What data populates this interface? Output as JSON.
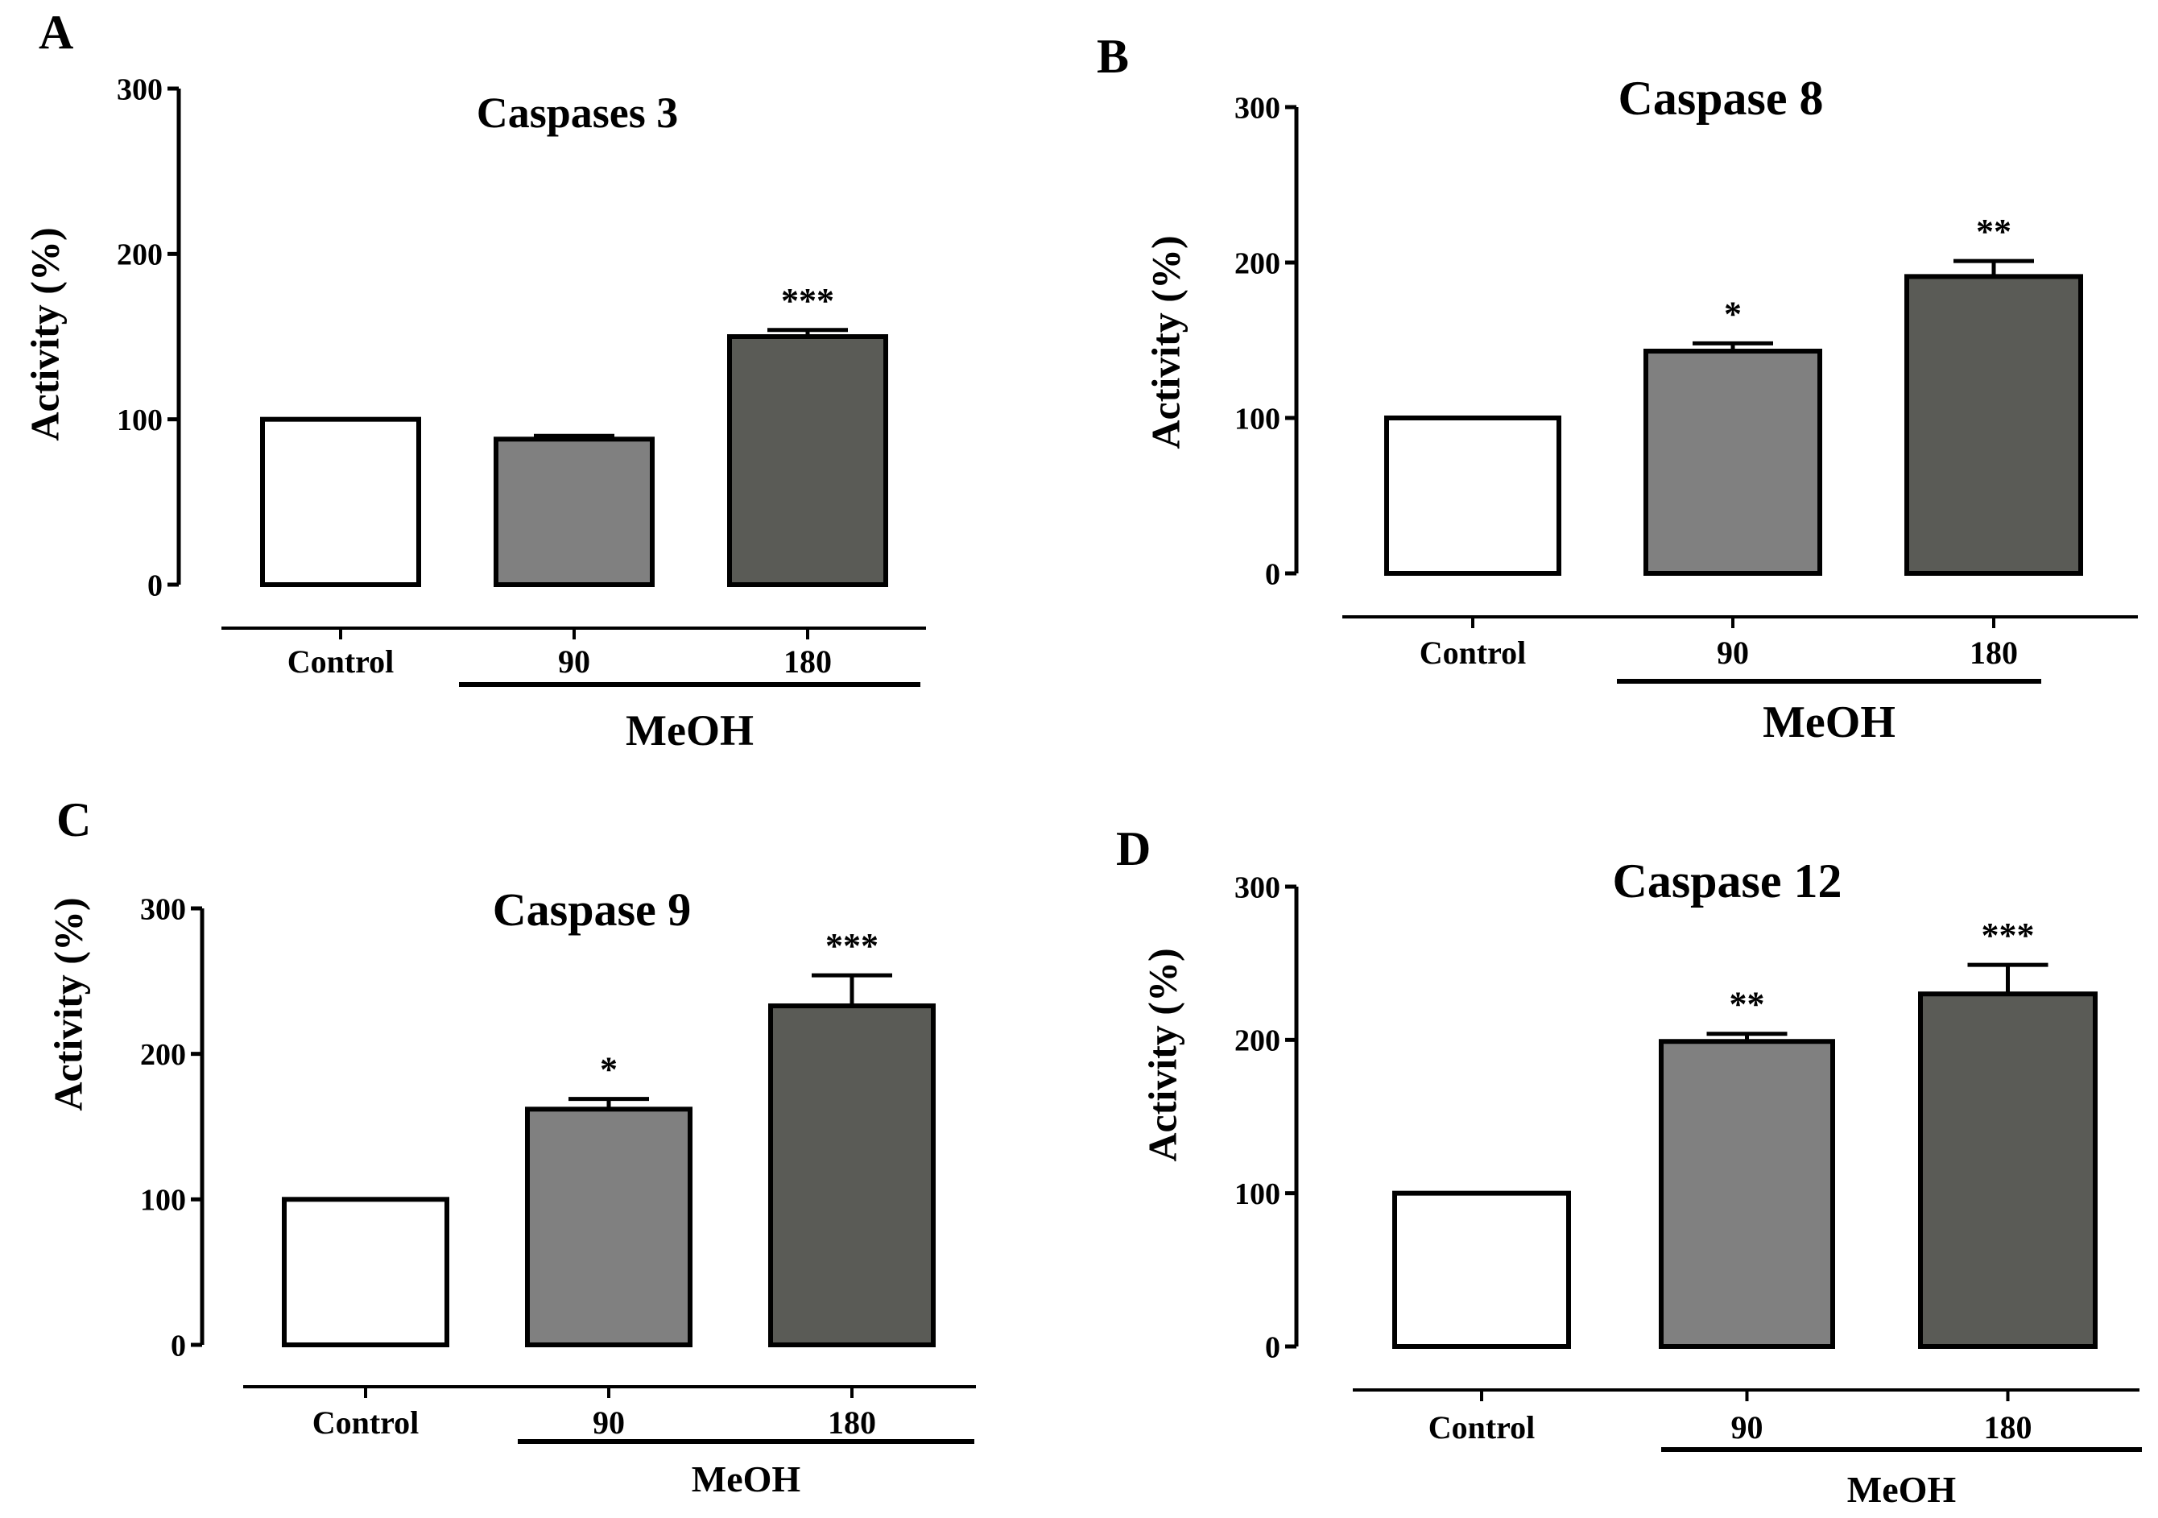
{
  "figure": {
    "bar_colors": {
      "Control": "#ffffff",
      "90": "#808080",
      "180": "#5a5b56"
    },
    "stroke_color": "#000000"
  },
  "chart_data": [
    {
      "panel": "A",
      "type": "bar",
      "title": "Caspases 3",
      "ylabel": "Activity (%)",
      "xlabel": "",
      "group_label": "MeOH",
      "categories": [
        "Control",
        "90",
        "180"
      ],
      "values": [
        100,
        88,
        150
      ],
      "errors": [
        0,
        2,
        4
      ],
      "significance": [
        "",
        "",
        "***"
      ],
      "yticks": [
        0,
        100,
        200,
        300
      ],
      "ylim": [
        0,
        300
      ]
    },
    {
      "panel": "B",
      "type": "bar",
      "title": "Caspase 8",
      "ylabel": "Activity (%)",
      "xlabel": "",
      "group_label": "MeOH",
      "categories": [
        "Control",
        "90",
        "180"
      ],
      "values": [
        100,
        143,
        191
      ],
      "errors": [
        0,
        5,
        10
      ],
      "significance": [
        "",
        "*",
        "**"
      ],
      "yticks": [
        0,
        100,
        200,
        300
      ],
      "ylim": [
        0,
        300
      ]
    },
    {
      "panel": "C",
      "type": "bar",
      "title": "Caspase 9",
      "ylabel": "Activity (%)",
      "xlabel": "",
      "group_label": "MeOH",
      "categories": [
        "Control",
        "90",
        "180"
      ],
      "values": [
        100,
        162,
        233
      ],
      "errors": [
        0,
        7,
        21
      ],
      "significance": [
        "",
        "*",
        "***"
      ],
      "yticks": [
        0,
        100,
        200,
        300
      ],
      "ylim": [
        0,
        300
      ]
    },
    {
      "panel": "D",
      "type": "bar",
      "title": "Caspase 12",
      "ylabel": "Activity (%)",
      "xlabel": "",
      "group_label": "MeOH",
      "categories": [
        "Control",
        "90",
        "180"
      ],
      "values": [
        100,
        199,
        230
      ],
      "errors": [
        0,
        5,
        19
      ],
      "significance": [
        "",
        "**",
        "***"
      ],
      "yticks": [
        0,
        100,
        200,
        300
      ],
      "ylim": [
        0,
        300
      ]
    }
  ]
}
